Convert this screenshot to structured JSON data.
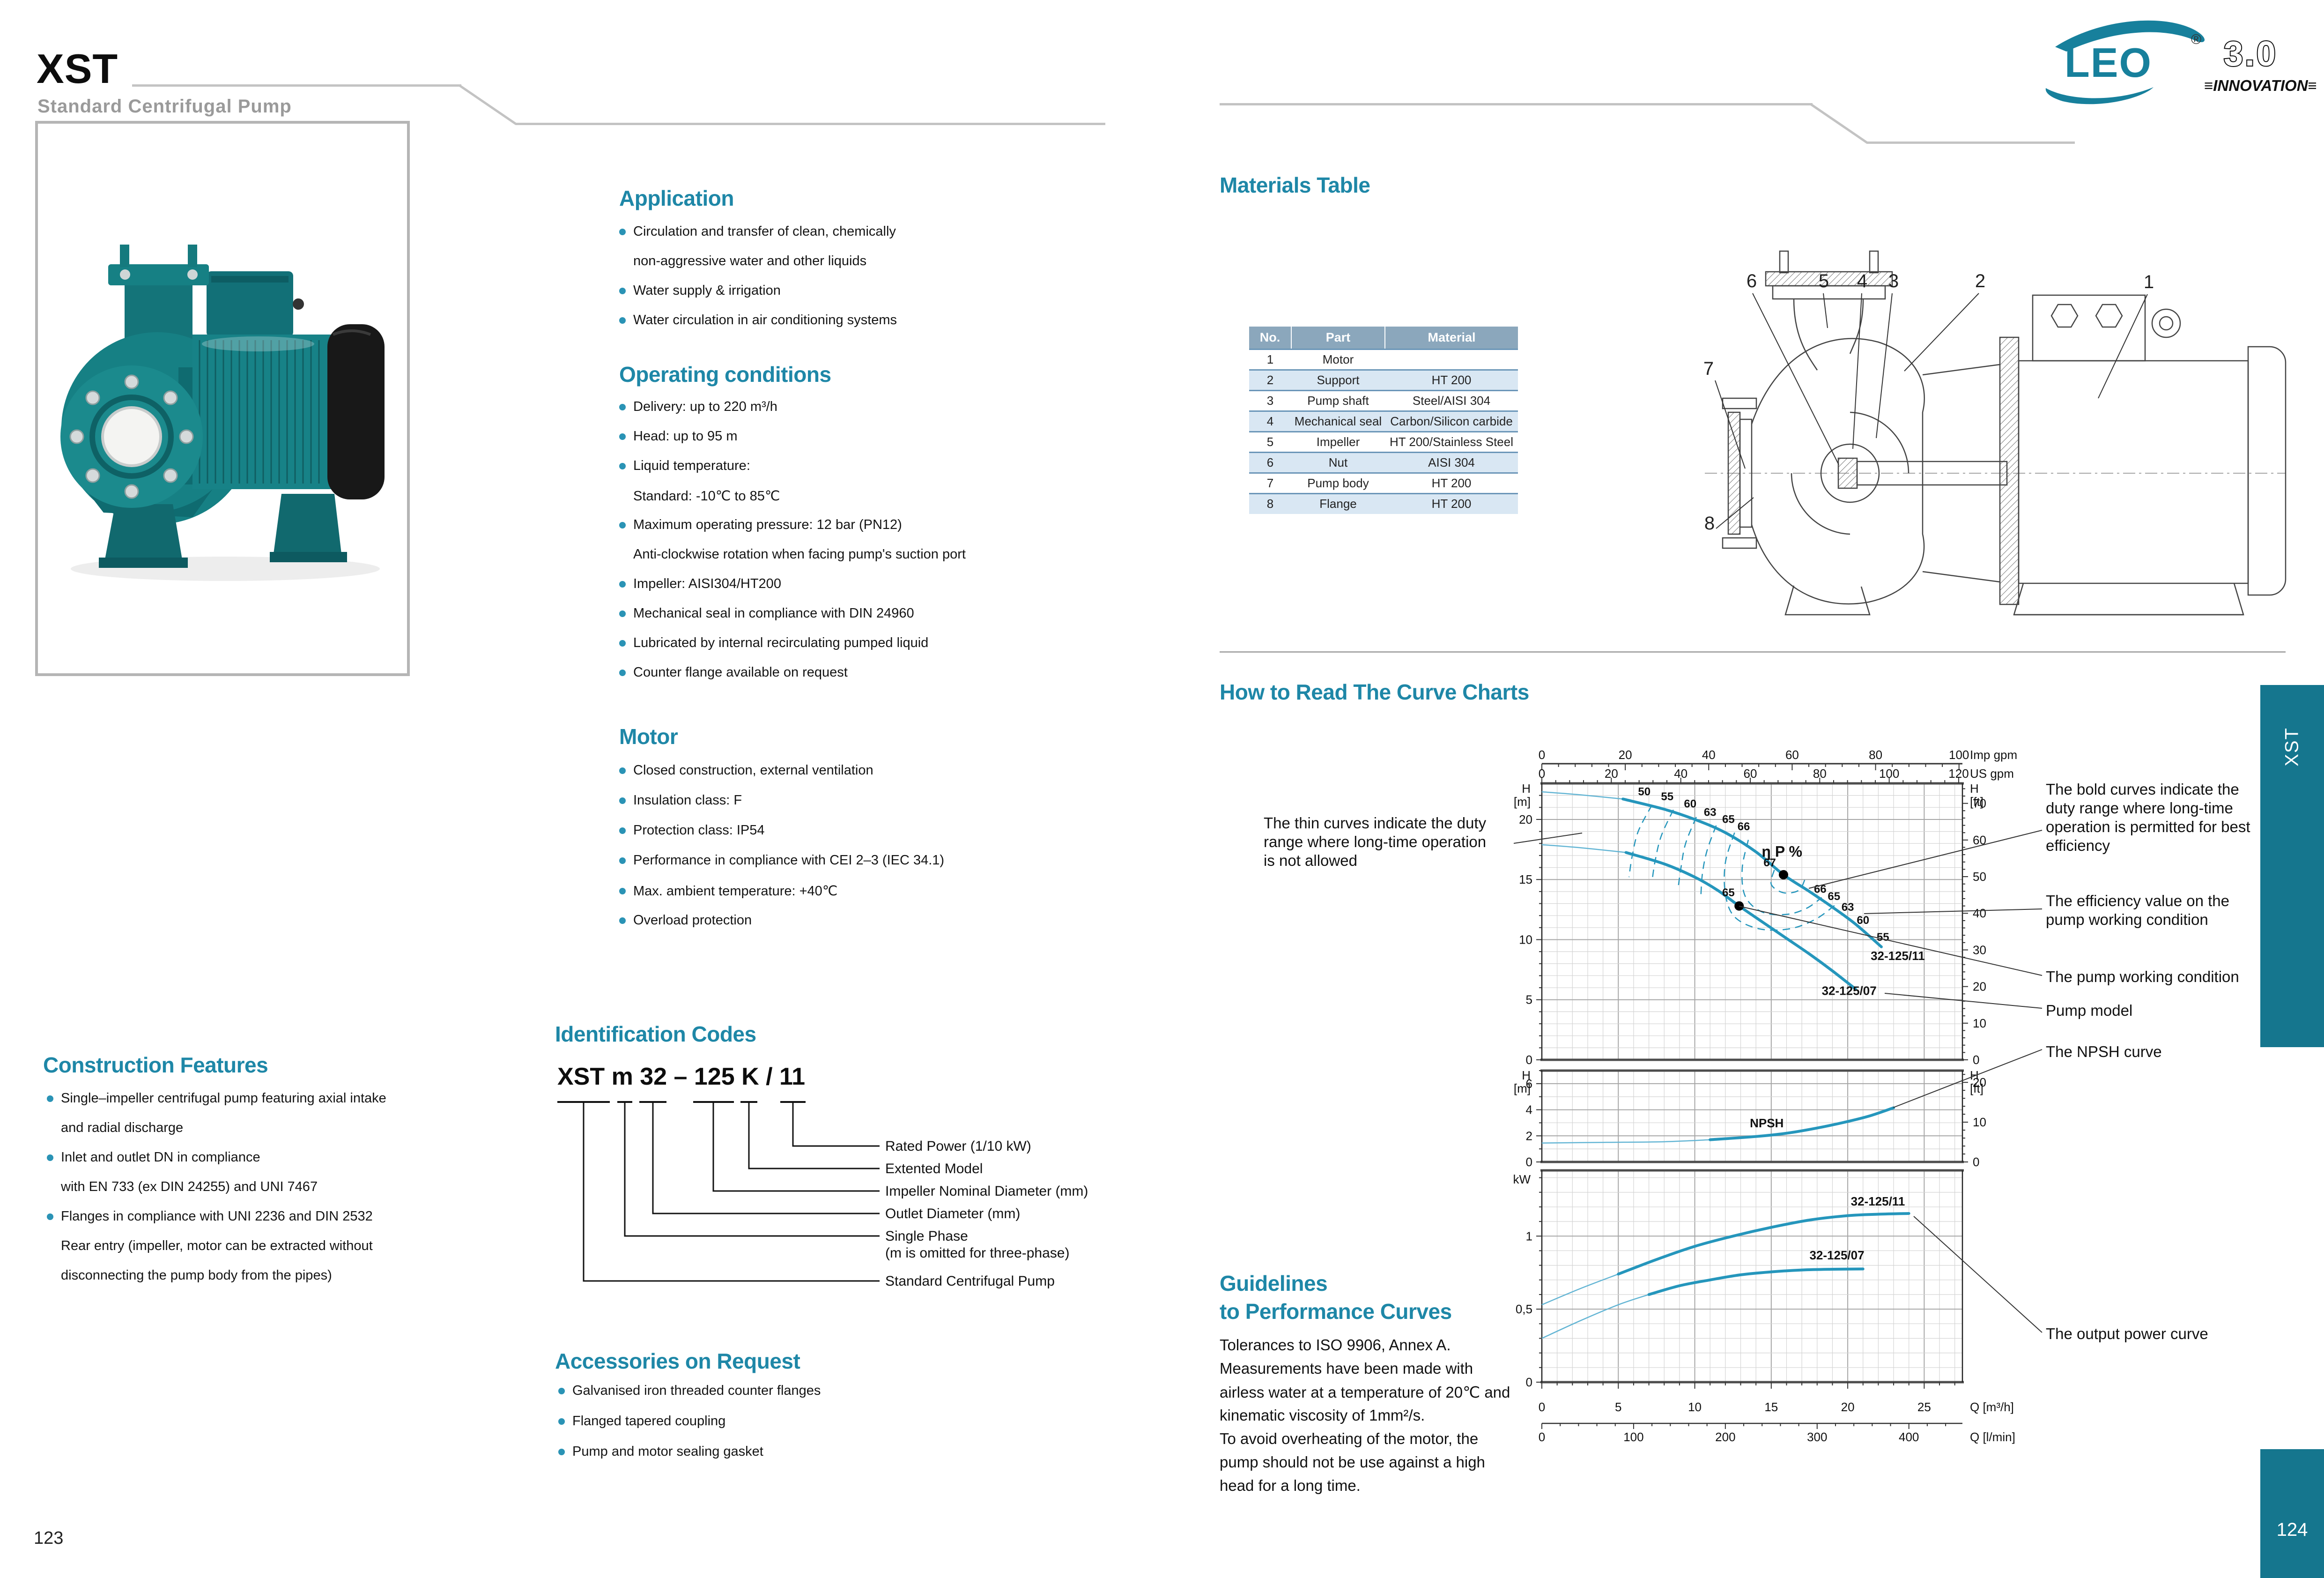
{
  "colors": {
    "accent": "#1e87a7",
    "tab": "#15768e",
    "curve": "#2596bc",
    "curvethin": "#63b5d4",
    "grid_minor": "#d4d4d4",
    "grid_major": "#a6a6a6",
    "frame": "#4d4d4d"
  },
  "page_left": {
    "header": {
      "title": "XST",
      "subtitle": "Standard Centrifugal Pump"
    },
    "application": {
      "title": "Application",
      "items": [
        {
          "text": "Circulation and transfer of clean, chemically"
        },
        {
          "text": "non-aggressive water and other liquids"
        },
        {
          "text": "Water supply & irrigation"
        },
        {
          "text": "Water circulation in air conditioning systems"
        }
      ]
    },
    "operating_conditions": {
      "title": "Operating conditions",
      "items": [
        {
          "text": "Delivery: up to 220 m³/h"
        },
        {
          "text": "Head: up to 95 m"
        },
        {
          "text": "Liquid temperature:"
        },
        {
          "text": "Standard:  -10℃ to 85℃"
        },
        {
          "text": "Maximum operating pressure: 12 bar (PN12)"
        },
        {
          "text": "Anti-clockwise rotation when facing pump's suction port"
        },
        {
          "text": "Impeller: AISI304/HT200"
        },
        {
          "text": "Mechanical seal in compliance with DIN 24960"
        },
        {
          "text": "Lubricated by internal recirculating pumped liquid"
        },
        {
          "text": "Counter flange available on request"
        }
      ]
    },
    "motor": {
      "title": "Motor",
      "items": [
        {
          "text": "Closed construction, external ventilation"
        },
        {
          "text": "Insulation class:  F"
        },
        {
          "text": "Protection class: IP54"
        },
        {
          "text": "Performance in compliance with CEI 2–3 (IEC 34.1)"
        },
        {
          "text": "Max. ambient temperature: +40℃"
        },
        {
          "text": "Overload protection"
        }
      ]
    },
    "construction": {
      "title": "Construction Features",
      "items": [
        {
          "text": "Single–impeller centrifugal pump featuring axial intake"
        },
        {
          "text": "and radial discharge"
        },
        {
          "text": "Inlet and outlet DN in compliance"
        },
        {
          "text": "with EN 733 (ex DIN 24255) and UNI 7467"
        },
        {
          "text": "Flanges in compliance with UNI 2236 and DIN 2532"
        },
        {
          "text": "Rear entry (impeller, motor can be extracted without"
        },
        {
          "text": "disconnecting the pump body from the pipes)"
        }
      ]
    },
    "identification": {
      "title": "Identification Codes",
      "code": "XST m 32 – 125 K / 11",
      "labels": [
        "Rated Power (1/10 kW)",
        "Extented Model",
        "Impeller Nominal Diameter (mm)",
        "Outlet Diameter (mm)",
        "Single Phase",
        "(m is omitted for three-phase)",
        "Standard Centrifugal Pump"
      ]
    },
    "accessories": {
      "title": "Accessories on Request",
      "items": [
        {
          "text": "Galvanised iron threaded counter flanges"
        },
        {
          "text": "Flanged tapered coupling"
        },
        {
          "text": "Pump and motor sealing gasket"
        }
      ]
    },
    "page_number": "123"
  },
  "page_right": {
    "logo": {
      "brand": "LEO",
      "registered": "®",
      "version": "3.0",
      "tagline": "≡INNOVATION≡"
    },
    "materials_table": {
      "title": "Materials Table",
      "columns": [
        "No.",
        "Part",
        "Material"
      ],
      "rows": [
        [
          "1",
          "Motor",
          ""
        ],
        [
          "2",
          "Support",
          "HT 200"
        ],
        [
          "3",
          "Pump shaft",
          "Steel/AISI 304"
        ],
        [
          "4",
          "Mechanical seal",
          "Carbon/Silicon carbide"
        ],
        [
          "5",
          "Impeller",
          "HT 200/Stainless Steel"
        ],
        [
          "6",
          "Nut",
          "AISI 304"
        ],
        [
          "7",
          "Pump body",
          "HT 200"
        ],
        [
          "8",
          "Flange",
          "HT 200"
        ]
      ]
    },
    "drawing": {
      "callouts": [
        "1",
        "2",
        "3",
        "4",
        "5",
        "6",
        "7",
        "8"
      ]
    },
    "how_to_read": {
      "title": "How to Read The Curve Charts",
      "note_left": [
        "The thin curves indicate the duty",
        "range where long-time operation",
        "is not allowed"
      ],
      "ann_bold": [
        "The bold curves indicate the",
        "duty range where long-time",
        "operation is permitted for best",
        "efficiency"
      ],
      "ann_eff": [
        "The efficiency value on the",
        "pump working condition"
      ],
      "ann_working": "The pump working condition",
      "ann_model": "Pump model",
      "ann_npsh": "The NPSH curve",
      "ann_power": "The output power curve"
    },
    "guidelines": {
      "title_line1": "Guidelines",
      "title_line2": "to Performance Curves",
      "lines": [
        "Tolerances to ISO 9906, Annex A.",
        "Measurements have been made with",
        "airless water at a temperature of 20℃ and",
        "kinematic viscosity of 1mm²/s.",
        "To avoid overheating of the motor, the",
        "pump should not be use against a high",
        "head for a long time."
      ]
    },
    "side_tab": "XST",
    "page_number": "124"
  },
  "chart_data": [
    {
      "type": "line",
      "id": "hq",
      "title": "H–Q curve chart (reading example)",
      "x_axis": {
        "range_m3h": [
          0,
          27.5
        ],
        "imp_gpm": {
          "label": "Imp gpm",
          "ticks": [
            0,
            20,
            40,
            60,
            80,
            100
          ],
          "per_m3h": 3.6661
        },
        "us_gpm": {
          "label": "US gpm",
          "ticks": [
            0,
            20,
            40,
            60,
            80,
            100,
            120
          ],
          "per_m3h": 4.4029
        }
      },
      "y_axis": {
        "label_left": [
          "H",
          "[m]"
        ],
        "range_m": [
          0,
          23
        ],
        "ticks_m": [
          0,
          5,
          10,
          15,
          20
        ],
        "label_right": [
          "H",
          "[ft]"
        ],
        "ticks_ft": [
          0,
          10,
          20,
          30,
          40,
          50,
          60,
          70
        ],
        "ft_per_m": 3.2808
      },
      "series": [
        {
          "name": "32-125/11",
          "bold_from": 5.3,
          "label_pos": [
            21.5,
            8.3
          ],
          "points": [
            [
              0,
              22.3
            ],
            [
              2.5,
              22.05
            ],
            [
              5.3,
              21.7
            ],
            [
              8,
              20.85
            ],
            [
              10,
              20.0
            ],
            [
              12,
              18.9
            ],
            [
              14,
              17.3
            ],
            [
              15.8,
              15.4
            ],
            [
              17.5,
              14.0
            ],
            [
              19,
              12.7
            ],
            [
              20.5,
              11.3
            ],
            [
              22.2,
              9.4
            ]
          ]
        },
        {
          "name": "32-125/07",
          "bold_from": 5.5,
          "label_pos": [
            18.3,
            5.4
          ],
          "points": [
            [
              0,
              17.9
            ],
            [
              2.5,
              17.65
            ],
            [
              5.5,
              17.25
            ],
            [
              8,
              16.3
            ],
            [
              10,
              15.2
            ],
            [
              11.5,
              14.1
            ],
            [
              12.9,
              12.8
            ],
            [
              14.5,
              11.4
            ],
            [
              16,
              10.1
            ],
            [
              17.5,
              8.8
            ],
            [
              19,
              7.4
            ],
            [
              20.5,
              5.9
            ]
          ]
        }
      ],
      "efficiency": {
        "symbol": "η P %",
        "symbol_pos": [
          15.7,
          16.9
        ],
        "contours": [
          {
            "value": 50,
            "label_pos": [
              6.7,
              22.0
            ],
            "points": [
              [
                7.2,
                21.2
              ],
              [
                6.3,
                19.0
              ],
              [
                5.9,
                16.9
              ],
              [
                5.7,
                15.2
              ]
            ]
          },
          {
            "value": 55,
            "label_pos": [
              8.2,
              21.6
            ],
            "points": [
              [
                8.6,
                20.8
              ],
              [
                7.8,
                18.6
              ],
              [
                7.4,
                16.5
              ],
              [
                7.2,
                14.8
              ]
            ]
          },
          {
            "value": 60,
            "label_pos": [
              9.7,
              21.0
            ],
            "points": [
              [
                10.1,
                20.2
              ],
              [
                9.4,
                18.0
              ],
              [
                9.1,
                16.0
              ],
              [
                8.9,
                14.2
              ]
            ]
          },
          {
            "value": 63,
            "label_pos": [
              11.0,
              20.3
            ],
            "points": [
              [
                11.4,
                19.5
              ],
              [
                10.8,
                17.4
              ],
              [
                10.5,
                15.5
              ],
              [
                10.4,
                13.7
              ]
            ]
          },
          {
            "value": 65,
            "label_pos": [
              12.2,
              19.7
            ],
            "points": [
              [
                12.6,
                18.9
              ],
              [
                12.0,
                16.4
              ],
              [
                12.0,
                13.8
              ],
              [
                12.6,
                11.9
              ],
              [
                14.2,
                10.9
              ],
              [
                16.2,
                10.9
              ],
              [
                17.9,
                11.7
              ],
              [
                19.2,
                12.9
              ]
            ]
          },
          {
            "value": 66,
            "label_pos": [
              13.2,
              19.1
            ],
            "points": [
              [
                13.5,
                18.3
              ],
              [
                13.1,
                15.9
              ],
              [
                13.3,
                13.6
              ],
              [
                14.4,
                12.3
              ],
              [
                16.0,
                12.1
              ],
              [
                17.3,
                12.6
              ],
              [
                18.3,
                13.5
              ]
            ]
          },
          {
            "value": 67,
            "label_pos": null,
            "points": [
              [
                15.2,
                15.8
              ],
              [
                15.0,
                14.6
              ],
              [
                15.8,
                13.9
              ],
              [
                16.8,
                14.1
              ],
              [
                17.2,
                15.0
              ]
            ]
          }
        ],
        "labels_right": [
          {
            "value": 66,
            "pos": [
              18.2,
              13.9
            ]
          },
          {
            "value": 65,
            "pos": [
              19.1,
              13.3
            ]
          },
          {
            "value": 63,
            "pos": [
              20.0,
              12.4
            ]
          },
          {
            "value": 60,
            "pos": [
              21.0,
              11.3
            ]
          },
          {
            "value": 55,
            "pos": [
              22.3,
              9.9
            ]
          }
        ]
      },
      "working_points": [
        {
          "label": "67",
          "pos": [
            15.8,
            15.4
          ],
          "label_pos": [
            14.9,
            16.1
          ]
        },
        {
          "label": "65",
          "pos": [
            12.9,
            12.8
          ],
          "label_pos": [
            12.2,
            13.6
          ]
        }
      ]
    },
    {
      "type": "line",
      "id": "npsh",
      "y_axis": {
        "label_left": [
          "H",
          "[m]"
        ],
        "range_m": [
          0,
          7
        ],
        "ticks_m": [
          0,
          2,
          4,
          6
        ],
        "label_right": [
          "H",
          "[ft]"
        ],
        "ticks_ft": [
          0,
          10,
          20
        ],
        "ft_per_m": 3.2808
      },
      "series": [
        {
          "name": "NPSH",
          "bold_from": 8.5,
          "label_pos": [
            13.6,
            2.65
          ],
          "points": [
            [
              0,
              1.45
            ],
            [
              4,
              1.5
            ],
            [
              8,
              1.55
            ],
            [
              11,
              1.7
            ],
            [
              14,
              1.95
            ],
            [
              16,
              2.2
            ],
            [
              18,
              2.6
            ],
            [
              20,
              3.1
            ],
            [
              21.5,
              3.55
            ],
            [
              23,
              4.15
            ]
          ]
        }
      ]
    },
    {
      "type": "line",
      "id": "power",
      "y_axis": {
        "label": "kW",
        "range_kw": [
          0,
          1.45
        ],
        "ticks": [
          [
            "0",
            0
          ],
          [
            "0,5",
            0.5
          ],
          [
            "1",
            1
          ]
        ]
      },
      "x_axis_bottom": {
        "m3h": {
          "label": "Q [m³/h]",
          "ticks": [
            0,
            5,
            10,
            15,
            20,
            25
          ]
        },
        "lmin": {
          "label": "Q [l/min]",
          "ticks": [
            0,
            100,
            200,
            300,
            400
          ],
          "lmin_per_m3h": 16.6667
        }
      },
      "series": [
        {
          "name": "32-125/11",
          "bold_from": 5,
          "label_pos": [
            20.2,
            1.21
          ],
          "points": [
            [
              0,
              0.53
            ],
            [
              2.5,
              0.64
            ],
            [
              5,
              0.74
            ],
            [
              7.5,
              0.84
            ],
            [
              10,
              0.93
            ],
            [
              12.5,
              1.0
            ],
            [
              15,
              1.06
            ],
            [
              17.5,
              1.11
            ],
            [
              20,
              1.14
            ],
            [
              22,
              1.15
            ],
            [
              24,
              1.155
            ]
          ]
        },
        {
          "name": "32-125/07",
          "bold_from": 5.5,
          "label_pos": [
            17.5,
            0.84
          ],
          "points": [
            [
              0,
              0.3
            ],
            [
              2.5,
              0.42
            ],
            [
              5,
              0.53
            ],
            [
              7,
              0.6
            ],
            [
              9,
              0.66
            ],
            [
              11,
              0.7
            ],
            [
              13,
              0.735
            ],
            [
              15,
              0.755
            ],
            [
              17,
              0.768
            ],
            [
              19,
              0.773
            ],
            [
              21,
              0.775
            ]
          ]
        }
      ]
    }
  ]
}
